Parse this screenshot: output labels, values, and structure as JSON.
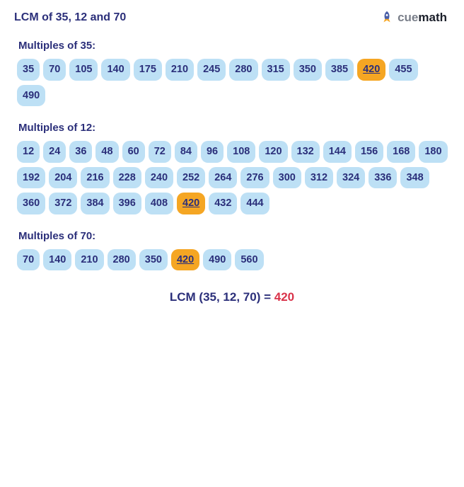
{
  "title": "LCM of 35, 12 and 70",
  "title_color": "#2b2f7a",
  "logo": {
    "brand_prefix": "cue",
    "brand_suffix": "math",
    "prefix_color": "#7a7f8a",
    "suffix_color": "#1b1f2a",
    "rocket_body": "#4a5fa8",
    "rocket_flame": "#f5a623"
  },
  "colors": {
    "chip_bg": "#bde0f5",
    "chip_text": "#2b2f7a",
    "chip_hl_bg": "#f5a623",
    "chip_hl_text": "#2b2f7a",
    "section_label": "#2b2f7a",
    "result_label": "#2b2f7a",
    "result_value": "#d9334a"
  },
  "sections": [
    {
      "label": "Multiples of 35:",
      "values": [
        35,
        70,
        105,
        140,
        175,
        210,
        245,
        280,
        315,
        350,
        385,
        420,
        455,
        490
      ],
      "highlight": [
        420
      ]
    },
    {
      "label": "Multiples of 12:",
      "values": [
        12,
        24,
        36,
        48,
        60,
        72,
        84,
        96,
        108,
        120,
        132,
        144,
        156,
        168,
        180,
        192,
        204,
        216,
        228,
        240,
        252,
        264,
        276,
        300,
        312,
        324,
        336,
        348,
        360,
        372,
        384,
        396,
        408,
        420,
        432,
        444
      ],
      "highlight": [
        420
      ]
    },
    {
      "label": "Multiples of 70:",
      "values": [
        70,
        140,
        210,
        280,
        350,
        420,
        490,
        560
      ],
      "highlight": [
        420
      ]
    }
  ],
  "result": {
    "label": "LCM (35, 12,  70) = ",
    "value": "420"
  }
}
